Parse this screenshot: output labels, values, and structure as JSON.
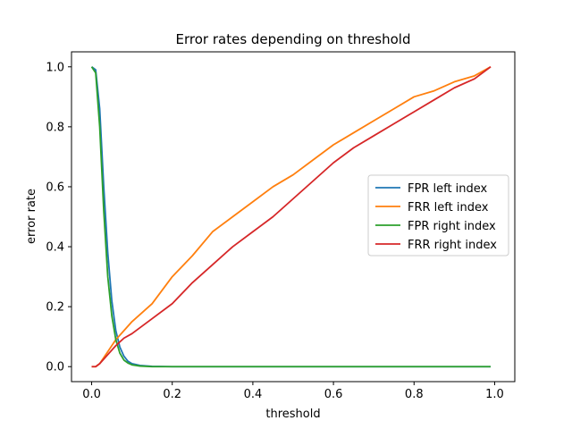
{
  "chart_data": {
    "type": "line",
    "title": "Error rates depending on threshold",
    "xlabel": "threshold",
    "ylabel": "error rate",
    "xlim": [
      -0.05,
      1.05
    ],
    "ylim": [
      -0.05,
      1.05
    ],
    "xticks": [
      0.0,
      0.2,
      0.4,
      0.6,
      0.8,
      1.0
    ],
    "xtick_labels": [
      "0.0",
      "0.2",
      "0.4",
      "0.6",
      "0.8",
      "1.0"
    ],
    "yticks": [
      0.0,
      0.2,
      0.4,
      0.6,
      0.8,
      1.0
    ],
    "ytick_labels": [
      "0.0",
      "0.2",
      "0.4",
      "0.6",
      "0.8",
      "1.0"
    ],
    "grid": false,
    "legend_position": "center-right",
    "series": [
      {
        "name": "FPR left index",
        "color": "#1f77b4",
        "x": [
          0.0,
          0.01,
          0.02,
          0.03,
          0.04,
          0.05,
          0.06,
          0.07,
          0.08,
          0.09,
          0.1,
          0.12,
          0.15,
          0.2,
          0.3,
          0.5,
          0.7,
          0.99
        ],
        "y": [
          1.0,
          0.99,
          0.86,
          0.6,
          0.38,
          0.22,
          0.12,
          0.065,
          0.035,
          0.018,
          0.01,
          0.004,
          0.001,
          0.0,
          0.0,
          0.0,
          0.0,
          0.0
        ]
      },
      {
        "name": "FRR left index",
        "color": "#ff7f0e",
        "x": [
          0.0,
          0.01,
          0.02,
          0.04,
          0.06,
          0.08,
          0.1,
          0.15,
          0.2,
          0.25,
          0.3,
          0.35,
          0.4,
          0.45,
          0.5,
          0.55,
          0.6,
          0.65,
          0.7,
          0.75,
          0.8,
          0.85,
          0.9,
          0.95,
          0.99
        ],
        "y": [
          0.0,
          0.0,
          0.01,
          0.05,
          0.09,
          0.12,
          0.15,
          0.21,
          0.3,
          0.37,
          0.45,
          0.5,
          0.55,
          0.6,
          0.64,
          0.69,
          0.74,
          0.78,
          0.82,
          0.86,
          0.9,
          0.92,
          0.95,
          0.97,
          1.0
        ]
      },
      {
        "name": "FPR right index",
        "color": "#2ca02c",
        "x": [
          0.0,
          0.01,
          0.02,
          0.03,
          0.04,
          0.05,
          0.06,
          0.07,
          0.08,
          0.09,
          0.1,
          0.12,
          0.15,
          0.2,
          0.3,
          0.5,
          0.7,
          0.99
        ],
        "y": [
          1.0,
          0.98,
          0.8,
          0.52,
          0.3,
          0.17,
          0.09,
          0.045,
          0.022,
          0.012,
          0.006,
          0.002,
          0.0,
          0.0,
          0.0,
          0.0,
          0.0,
          0.0
        ]
      },
      {
        "name": "FRR right index",
        "color": "#d62728",
        "x": [
          0.0,
          0.01,
          0.02,
          0.04,
          0.06,
          0.08,
          0.1,
          0.15,
          0.2,
          0.25,
          0.3,
          0.35,
          0.4,
          0.45,
          0.5,
          0.55,
          0.6,
          0.65,
          0.7,
          0.75,
          0.8,
          0.85,
          0.9,
          0.95,
          0.99
        ],
        "y": [
          0.0,
          0.0,
          0.01,
          0.04,
          0.07,
          0.095,
          0.11,
          0.16,
          0.21,
          0.28,
          0.34,
          0.4,
          0.45,
          0.5,
          0.56,
          0.62,
          0.68,
          0.73,
          0.77,
          0.81,
          0.85,
          0.89,
          0.93,
          0.96,
          1.0
        ]
      }
    ]
  }
}
